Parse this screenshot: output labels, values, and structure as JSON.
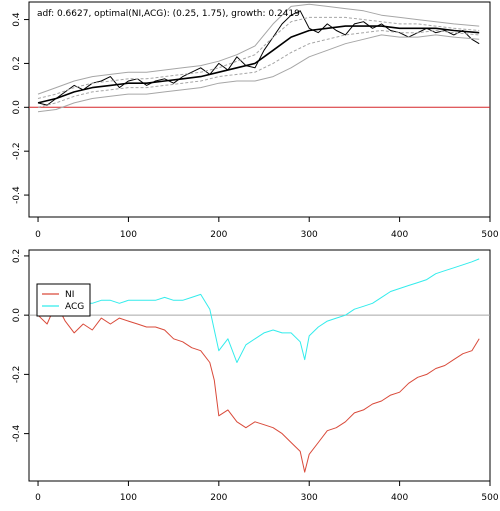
{
  "chart_data": [
    {
      "type": "line",
      "title": "adf: 0.6627, optimal(NI,ACG): (0.25, 1.75), growth: 0.2419",
      "xlabel": "",
      "ylabel": "",
      "xlim": [
        -10,
        500
      ],
      "ylim": [
        -0.5,
        0.48
      ],
      "x_ticks": [
        0,
        100,
        200,
        300,
        400,
        500
      ],
      "y_ticks": [
        -0.4,
        -0.2,
        0.0,
        0.2,
        0.4
      ],
      "grid": false,
      "hline": {
        "y": 0.0,
        "color": "#d62728"
      },
      "series": [
        {
          "role": "spread",
          "color": "#000000",
          "x": [
            0,
            10,
            20,
            30,
            40,
            50,
            60,
            70,
            80,
            90,
            100,
            110,
            120,
            130,
            140,
            150,
            160,
            170,
            180,
            190,
            200,
            210,
            220,
            230,
            240,
            250,
            260,
            270,
            280,
            290,
            300,
            310,
            320,
            330,
            340,
            350,
            360,
            370,
            380,
            390,
            400,
            410,
            420,
            430,
            440,
            450,
            460,
            470,
            480,
            488
          ],
          "values": [
            0.02,
            0.01,
            0.04,
            0.07,
            0.1,
            0.08,
            0.11,
            0.12,
            0.14,
            0.09,
            0.12,
            0.13,
            0.1,
            0.12,
            0.13,
            0.11,
            0.14,
            0.16,
            0.18,
            0.15,
            0.2,
            0.17,
            0.23,
            0.19,
            0.18,
            0.26,
            0.32,
            0.38,
            0.42,
            0.44,
            0.36,
            0.34,
            0.38,
            0.35,
            0.33,
            0.38,
            0.39,
            0.36,
            0.38,
            0.35,
            0.34,
            0.32,
            0.34,
            0.36,
            0.34,
            0.35,
            0.33,
            0.35,
            0.31,
            0.29
          ]
        },
        {
          "role": "moving-average",
          "color": "#000000",
          "x": [
            0,
            20,
            40,
            60,
            80,
            100,
            120,
            140,
            160,
            180,
            200,
            220,
            240,
            260,
            280,
            300,
            320,
            340,
            360,
            380,
            400,
            420,
            440,
            460,
            488
          ],
          "values": [
            0.02,
            0.04,
            0.07,
            0.09,
            0.1,
            0.11,
            0.11,
            0.12,
            0.13,
            0.14,
            0.16,
            0.18,
            0.2,
            0.26,
            0.32,
            0.35,
            0.36,
            0.37,
            0.37,
            0.37,
            0.36,
            0.36,
            0.36,
            0.35,
            0.34
          ]
        },
        {
          "role": "upper-band-outer",
          "color": "#a6a6a6",
          "x": [
            0,
            20,
            40,
            60,
            80,
            100,
            120,
            140,
            160,
            180,
            200,
            220,
            240,
            260,
            280,
            300,
            320,
            340,
            360,
            380,
            400,
            420,
            440,
            460,
            488
          ],
          "values": [
            0.06,
            0.09,
            0.12,
            0.14,
            0.15,
            0.16,
            0.16,
            0.17,
            0.18,
            0.19,
            0.21,
            0.24,
            0.28,
            0.38,
            0.46,
            0.47,
            0.46,
            0.45,
            0.44,
            0.42,
            0.41,
            0.4,
            0.39,
            0.38,
            0.37
          ]
        },
        {
          "role": "upper-band-inner",
          "color": "#a6a6a6",
          "dashed": true,
          "x": [
            0,
            20,
            40,
            60,
            80,
            100,
            120,
            140,
            160,
            180,
            200,
            220,
            240,
            260,
            280,
            300,
            320,
            340,
            360,
            380,
            400,
            420,
            440,
            460,
            488
          ],
          "values": [
            0.04,
            0.06,
            0.09,
            0.11,
            0.12,
            0.13,
            0.13,
            0.14,
            0.15,
            0.16,
            0.18,
            0.21,
            0.24,
            0.32,
            0.39,
            0.41,
            0.41,
            0.41,
            0.4,
            0.39,
            0.38,
            0.38,
            0.37,
            0.36,
            0.35
          ]
        },
        {
          "role": "lower-band-inner",
          "color": "#a6a6a6",
          "dashed": true,
          "x": [
            0,
            20,
            40,
            60,
            80,
            100,
            120,
            140,
            160,
            180,
            200,
            220,
            240,
            260,
            280,
            300,
            320,
            340,
            360,
            380,
            400,
            420,
            440,
            460,
            488
          ],
          "values": [
            0.0,
            0.02,
            0.05,
            0.07,
            0.08,
            0.09,
            0.09,
            0.1,
            0.11,
            0.12,
            0.14,
            0.15,
            0.16,
            0.2,
            0.25,
            0.29,
            0.31,
            0.33,
            0.34,
            0.35,
            0.34,
            0.34,
            0.35,
            0.34,
            0.33
          ]
        },
        {
          "role": "lower-band-outer",
          "color": "#a6a6a6",
          "x": [
            0,
            20,
            40,
            60,
            80,
            100,
            120,
            140,
            160,
            180,
            200,
            220,
            240,
            260,
            280,
            300,
            320,
            340,
            360,
            380,
            400,
            420,
            440,
            460,
            488
          ],
          "values": [
            -0.02,
            -0.01,
            0.02,
            0.04,
            0.05,
            0.06,
            0.06,
            0.07,
            0.08,
            0.09,
            0.11,
            0.12,
            0.12,
            0.14,
            0.18,
            0.23,
            0.26,
            0.29,
            0.31,
            0.33,
            0.32,
            0.32,
            0.33,
            0.32,
            0.31
          ]
        }
      ]
    },
    {
      "type": "line",
      "xlabel": "",
      "ylabel": "",
      "xlim": [
        -10,
        500
      ],
      "ylim": [
        -0.56,
        0.22
      ],
      "x_ticks": [
        0,
        100,
        200,
        300,
        400,
        500
      ],
      "y_ticks": [
        -0.4,
        -0.2,
        0.0,
        0.2
      ],
      "grid": false,
      "hline": {
        "y": 0.0,
        "color": "#a6a6a6"
      },
      "legend": {
        "placement": "top-left",
        "entries": [
          "NI",
          "ACG"
        ]
      },
      "series": [
        {
          "name": "NI",
          "color": "#d94a3a",
          "x": [
            0,
            10,
            20,
            30,
            40,
            50,
            60,
            70,
            80,
            90,
            100,
            110,
            120,
            130,
            140,
            150,
            160,
            170,
            180,
            190,
            195,
            200,
            210,
            220,
            230,
            240,
            250,
            260,
            270,
            280,
            290,
            295,
            300,
            310,
            320,
            330,
            340,
            350,
            360,
            370,
            380,
            390,
            400,
            410,
            420,
            430,
            440,
            450,
            460,
            470,
            480,
            488
          ],
          "values": [
            0.0,
            -0.03,
            0.04,
            -0.02,
            -0.06,
            -0.03,
            -0.05,
            -0.01,
            -0.03,
            -0.01,
            -0.02,
            -0.03,
            -0.04,
            -0.04,
            -0.05,
            -0.08,
            -0.09,
            -0.11,
            -0.12,
            -0.16,
            -0.22,
            -0.34,
            -0.32,
            -0.36,
            -0.38,
            -0.36,
            -0.37,
            -0.38,
            -0.4,
            -0.43,
            -0.46,
            -0.53,
            -0.47,
            -0.43,
            -0.39,
            -0.38,
            -0.36,
            -0.33,
            -0.32,
            -0.3,
            -0.29,
            -0.27,
            -0.26,
            -0.23,
            -0.21,
            -0.2,
            -0.18,
            -0.17,
            -0.15,
            -0.13,
            -0.12,
            -0.08
          ]
        },
        {
          "name": "ACG",
          "color": "#33ecec",
          "x": [
            0,
            10,
            20,
            30,
            40,
            50,
            60,
            70,
            80,
            90,
            100,
            110,
            120,
            130,
            140,
            150,
            160,
            170,
            180,
            190,
            195,
            200,
            210,
            220,
            230,
            240,
            250,
            260,
            270,
            280,
            290,
            295,
            300,
            310,
            320,
            330,
            340,
            350,
            360,
            370,
            380,
            390,
            400,
            410,
            420,
            430,
            440,
            450,
            460,
            470,
            480,
            488
          ],
          "values": [
            0.01,
            0.03,
            0.04,
            0.03,
            0.03,
            0.04,
            0.04,
            0.05,
            0.05,
            0.04,
            0.05,
            0.05,
            0.05,
            0.05,
            0.06,
            0.05,
            0.05,
            0.06,
            0.07,
            0.02,
            -0.05,
            -0.12,
            -0.08,
            -0.16,
            -0.1,
            -0.08,
            -0.06,
            -0.05,
            -0.06,
            -0.06,
            -0.09,
            -0.15,
            -0.07,
            -0.04,
            -0.02,
            -0.01,
            0.0,
            0.02,
            0.03,
            0.04,
            0.06,
            0.08,
            0.09,
            0.1,
            0.11,
            0.12,
            0.14,
            0.15,
            0.16,
            0.17,
            0.18,
            0.19
          ]
        }
      ]
    }
  ]
}
